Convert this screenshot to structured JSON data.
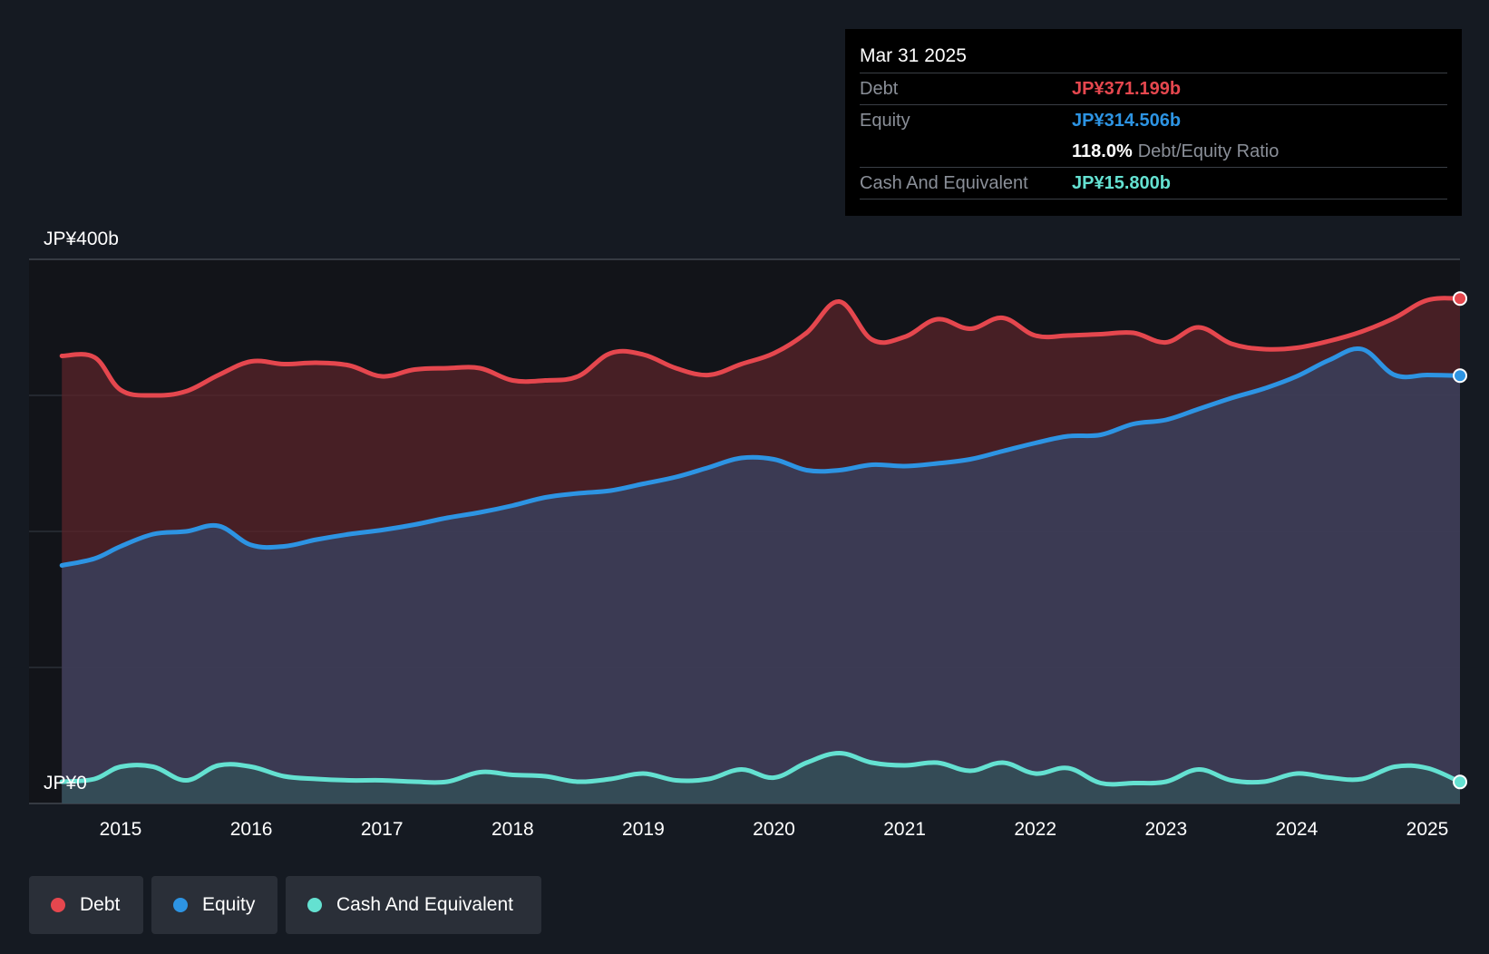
{
  "tooltip": {
    "date": "Mar 31 2025",
    "debt_label": "Debt",
    "debt_value": "JP¥371.199b",
    "equity_label": "Equity",
    "equity_value": "JP¥314.506b",
    "ratio_value": "118.0%",
    "ratio_label": "Debt/Equity Ratio",
    "cash_label": "Cash And Equivalent",
    "cash_value": "JP¥15.800b"
  },
  "legend": {
    "debt": "Debt",
    "equity": "Equity",
    "cash": "Cash And Equivalent"
  },
  "colors": {
    "debt": "#e5474e",
    "equity": "#2d94e3",
    "cash": "#64e1d1",
    "background": "#151a22"
  },
  "chart_data": {
    "type": "area",
    "ylabel_top": "JP¥400b",
    "ylabel_bottom": "JP¥0",
    "ylim": [
      0,
      400
    ],
    "x_ticks": [
      "2015",
      "2016",
      "2017",
      "2018",
      "2019",
      "2020",
      "2021",
      "2022",
      "2023",
      "2024",
      "2025"
    ],
    "x_tick_values": [
      2015,
      2016,
      2017,
      2018,
      2019,
      2020,
      2021,
      2022,
      2023,
      2024,
      2025
    ],
    "x": [
      2014.55,
      2014.8,
      2015.0,
      2015.25,
      2015.5,
      2015.75,
      2016.0,
      2016.25,
      2016.5,
      2016.75,
      2017.0,
      2017.25,
      2017.5,
      2017.75,
      2018.0,
      2018.25,
      2018.5,
      2018.75,
      2019.0,
      2019.25,
      2019.5,
      2019.75,
      2020.0,
      2020.25,
      2020.5,
      2020.75,
      2021.0,
      2021.25,
      2021.5,
      2021.75,
      2022.0,
      2022.25,
      2022.5,
      2022.75,
      2023.0,
      2023.25,
      2023.5,
      2023.75,
      2024.0,
      2024.25,
      2024.5,
      2024.75,
      2025.0,
      2025.25
    ],
    "series": [
      {
        "name": "Debt",
        "values": [
          329,
          328,
          304,
          300,
          303,
          315,
          325,
          323,
          324,
          322,
          314,
          319,
          320,
          320,
          311,
          311,
          314,
          331,
          330,
          320,
          315,
          323,
          331,
          346,
          369,
          341,
          343,
          356,
          349,
          357,
          344,
          344,
          345,
          346,
          339,
          350,
          338,
          334,
          335,
          340,
          347,
          357,
          370,
          371.2
        ]
      },
      {
        "name": "Equity",
        "values": [
          175,
          180,
          189,
          198,
          200,
          204,
          190,
          189,
          194,
          198,
          201,
          205,
          210,
          214,
          219,
          225,
          228,
          230,
          235,
          240,
          247,
          254,
          253,
          245,
          245,
          249,
          248,
          250,
          253,
          259,
          265,
          270,
          271,
          279,
          282,
          290,
          298,
          305,
          314,
          326,
          334,
          315,
          315,
          314.5
        ]
      },
      {
        "name": "Cash And Equivalent",
        "values": [
          16,
          18,
          27,
          27,
          17,
          28,
          27,
          20,
          18,
          17,
          17,
          16,
          16,
          23,
          21,
          20,
          16,
          18,
          22,
          17,
          18,
          25,
          19,
          30,
          37,
          30,
          28,
          30,
          24,
          30,
          22,
          26,
          15,
          15,
          16,
          25,
          17,
          16,
          22,
          19,
          18,
          27,
          26,
          15.8
        ]
      }
    ]
  }
}
